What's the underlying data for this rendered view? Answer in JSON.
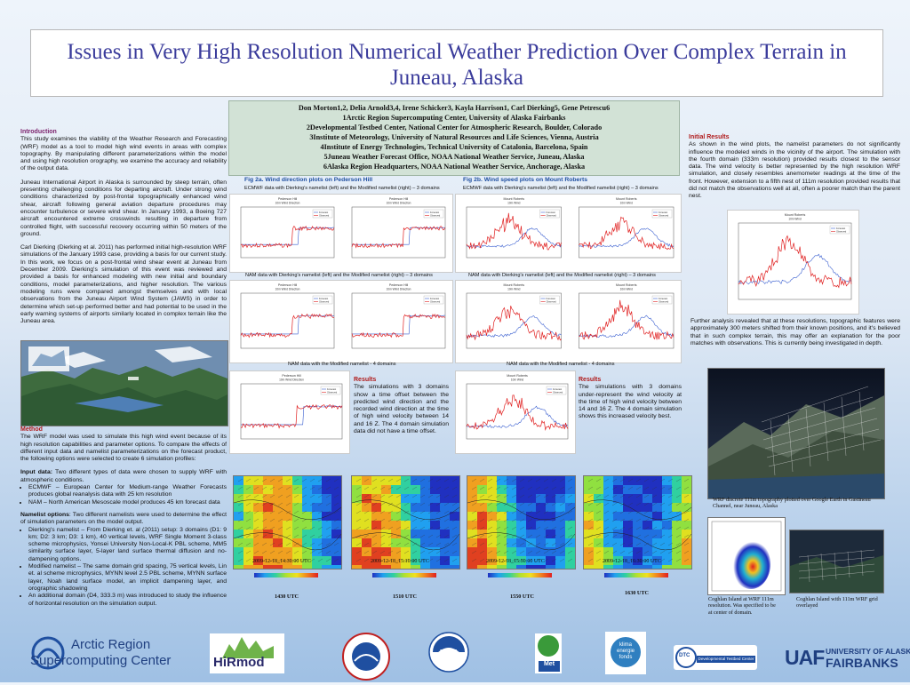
{
  "title": "Issues in Very High Resolution Numerical Weather Prediction Over Complex Terrain in Juneau, Alaska",
  "authors": {
    "names": "Don Morton1,2, Delia Arnold3,4, Irene Schicker3, Kayla Harrison1, Carl Dierking5, Gene Petrescu6",
    "affiliations": [
      "1Arctic Region Supercomputing Center, University of Alaska Fairbanks",
      "2Developmental Testbed Center, National Center for Atmospheric Research, Boulder, Colorado",
      "3Institute of Meteorology, University of Natural Resources and Life Sciences, Vienna, Austria",
      "4Institute of Energy Technologies, Technical University of Catalonia, Barcelona, Spain",
      "5Juneau Weather Forecast Office, NOAA National Weather Service, Juneau, Alaska",
      "6Alaska Region Headquarters, NOAA National Weather Service, Anchorage, Alaska"
    ]
  },
  "introduction": {
    "heading": "Introduction",
    "paragraphs": [
      "This study examines the viability of the Weather Research and Forecasting (WRF) model as a tool to model high wind events in areas with complex topography. By manipulating different parameterizations within the model and using high resolution orography, we examine the accuracy and reliability of the output data.",
      "Juneau International Airport in Alaska is surrounded by steep terrain, often presenting challenging conditions for departing aircraft. Under strong wind conditions characterized by post-frontal topographically enhanced wind shear, aircraft following general aviation departure procedures may encounter turbulence or severe wind shear. In January 1993, a Boeing 727 aircraft encountered extreme crosswinds resulting in departure from controlled flight, with successful recovery occurring within 50 meters of the ground.",
      "Carl Dierking (Dierking et al. 2011) has performed initial high-resolution WRF simulations of the January 1993 case, providing a basis for our current study. In this work, we focus on a post-frontal wind shear event at Juneau from December 2009. Dierking's simulation of this event was reviewed and provided a basis for enhanced modeling with new initial and boundary conditions, model parameterizations, and higher resolution. The various modeling runs were compared amongst themselves and with local observations from the Juneau Airport Wind System (JAWS) in order to determine which set-up performed better and had potential to be used in the early warning systems of airports similarly located in complex terrain like the Juneau area."
    ]
  },
  "method": {
    "heading": "Method",
    "paragraph": "The WRF model was used to simulate this high wind event because of its high resolution capabilities and parameter options. To compare the effects of different input data and namelist parameterizations on the forecast product, the following options were selected to create 6 simulation profiles:",
    "input_label": "Input data:",
    "input_text": "Two different types of data were chosen to supply WRF with atmospheric conditions.",
    "input_items": [
      "ECMWF – European Center for Medium-range Weather Forecasts produces global reanalysis data with 25 km resolution",
      "NAM – North American Mesoscale model produces 45 km forecast data"
    ],
    "namelist_label": "Namelist options",
    "namelist_text": ": Two different namelists were used to determine the effect of simulation parameters on the model output.",
    "namelist_items": [
      "Dierking's namelist – From Dierking et. al (2011) setup: 3 domains (D1: 9 km; D2: 3 km; D3: 1 km), 40 vertical levels, WRF Single Moment 3-class scheme microphysics, Yonsei University Non-Local-K PBL scheme, MM5 similarity surface layer, 5-layer land surface thermal diffusion and no-dampening options.",
      "Modified namelist – The same domain grid spacing, 75 vertical levels, Lin et. al scheme microphysics, MYNN level 2.5 PBL scheme, MYNN surface layer, Noah land surface model, an implicit dampening layer, and orographic shadowing",
      "An additional domain (D4, 333.3 m) was introduced to study the influence of horizontal resolution on the simulation output."
    ]
  },
  "fig2a": {
    "heading": "Fig 2a. Wind direction plots on Pederson Hill",
    "caption_top": "ECMWF data with Dierking's namelist (left) and the Modified namelist (right) – 3 domains",
    "caption_mid": "NAM data with Dierking's namelist (left) and the Modified namelist (right) – 3 domains",
    "caption_bottom": "NAM data with the Modified namelist - 4 domains",
    "plot_title": "Pederson Hill",
    "plot_subtitle": "10m Wind Direction",
    "results_heading": "Results",
    "results_text": "The simulations with 3 domains show a time offset between the predicted wind direction and the recorded wind direction at the time of high wind velocity between 14 and 16 Z. The 4 domain simulation data did not have a time offset."
  },
  "fig2b": {
    "heading": "Fig 2b. Wind speed plots on Mount Roberts",
    "caption_top": "ECMWF data with Dierking's namelist (left) and the Modified namelist (right) – 3 domains",
    "caption_mid": "NAM data with Dierking's namelist (left) and the Modified namelist (right) – 3 domains",
    "caption_bottom": "NAM data with the Modified namelist - 4 domains",
    "plot_title": "Mount Roberts",
    "plot_subtitle": "10m Wind",
    "results_heading": "Results",
    "results_text": "The simulations with 3 domains under-represent the wind velocity at the time of high wind velocity between 14 and 16 Z. The 4 domain simulation shows this increased velocity best."
  },
  "legend": {
    "forecast": "Forecast",
    "observed": "Observed"
  },
  "initial_results": {
    "heading": "Initial Results",
    "text": "As shown in the wind plots, the namelist parameters do not significantly influence the modeled winds in the vicinity of the airport. The simulation with the fourth domain (333m resolution) provided results closest to the sensor data. The wind velocity is better represented by the high resolution WRF simulation, and closely resembles anemometer readings at the time of the front. However, extension to a fifth nest of 111m resolution provided results that did not match the observations well at all, often a poorer match than the parent nest.",
    "plot_title": "Mount Roberts",
    "plot_subtitle": "10m Wind Velocity",
    "further": "Further analysis revealed that at these resolutions, topographic features were approximately 300 meters shifted from their known positions, and it's believed that in such complex terrain, this may offer an explanation for the poor matches with observations. This is currently being investigated in depth."
  },
  "maps": [
    {
      "stamp": "2009-12-18_14:30:00 UTC",
      "label": "1430 UTC"
    },
    {
      "stamp": "2009-12-18_15:10:00 UTC",
      "label": "1510 UTC"
    },
    {
      "stamp": "2009-12-18_15:50:00 UTC",
      "label": "1550 UTC"
    },
    {
      "stamp": "2009-12-18_16:30:00 UTC",
      "label": "1630 UTC"
    }
  ],
  "right_captions": {
    "wrf": "WRF discrete 111m topography plotted over Google Earth in Gastineau Channel, near Juneau, Alaska",
    "coghlan1": "Coghlan Island at WRF 111m resolution. Was specified to be at center of domain.",
    "coghlan2": "Coghlan Island with 111m WRF grid overlayed"
  },
  "logos": {
    "arsc": "Arctic Region",
    "arsc2": "Supercomputing Center",
    "hirmod": "HiRmod",
    "noaa": "NOAA",
    "met": "Met",
    "klima": "klima energie fonds",
    "dtc": "Developmental Testbed Center",
    "uaf_univ": "UNIVERSITY OF ALASKA",
    "uaf_fair": "FAIRBANKS",
    "uaf_mark": "UAF"
  },
  "colors": {
    "title": "#3a3b9b",
    "heading": "#8b1a2c",
    "figure_heading": "#1f4fa0",
    "forecast": "#3a5fd0",
    "observed": "#e02020"
  }
}
